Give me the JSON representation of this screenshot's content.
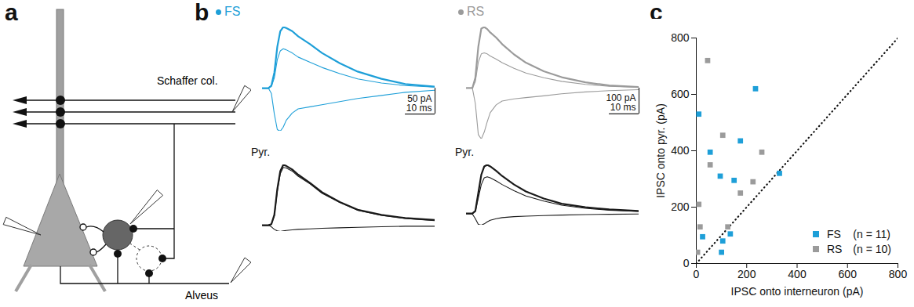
{
  "chart_data": [
    {
      "type": "diagram",
      "panel_label": "a",
      "labels": {
        "schaffer": "Schaffer col.",
        "alveus": "Alveus"
      }
    },
    {
      "type": "line",
      "panel_label": "b",
      "x": [
        -2,
        0,
        1,
        2,
        3,
        4,
        5,
        6,
        8,
        10,
        14,
        18,
        24,
        30,
        38,
        46,
        56
      ],
      "groups": [
        {
          "name": "FS",
          "color": "#1e9fd8",
          "marker": "circle",
          "scale_bars": {
            "y": {
              "value": 50,
              "label": "50 pA"
            },
            "x": {
              "value": 10,
              "label": "10 ms"
            }
          },
          "series": [
            {
              "color": "#1e9fd8",
              "values": [
                0,
                0,
                5,
                30,
                80,
                110,
                118,
                116,
                110,
                100,
                85,
                68,
                48,
                32,
                18,
                8,
                3
              ]
            },
            {
              "color": "#1e9fd8",
              "values": [
                0,
                0,
                3,
                20,
                55,
                72,
                76,
                74,
                68,
                60,
                50,
                40,
                28,
                18,
                10,
                5,
                2
              ]
            },
            {
              "color": "#1e9fd8",
              "values": [
                0,
                0,
                -10,
                -50,
                -80,
                -83,
                -75,
                -62,
                -48,
                -40,
                -36,
                -32,
                -26,
                -20,
                -14,
                -8,
                -4
              ]
            }
          ],
          "pyr_label": "Pyr.",
          "pyr_series": [
            {
              "color": "#1a1a1a",
              "values": [
                0,
                0,
                2,
                20,
                70,
                105,
                117,
                115,
                108,
                98,
                82,
                64,
                45,
                30,
                20,
                14,
                10
              ]
            },
            {
              "color": "#1a1a1a",
              "values": [
                0,
                0,
                2,
                18,
                66,
                100,
                112,
                111,
                105,
                95,
                80,
                62,
                44,
                29,
                19,
                13,
                9
              ]
            },
            {
              "color": "#1a1a1a",
              "values": [
                0,
                0,
                -3,
                -8,
                -11,
                -12,
                -11,
                -10,
                -9,
                -8,
                -7,
                -6,
                -5,
                -4,
                -3,
                -2,
                -2
              ]
            }
          ]
        },
        {
          "name": "RS",
          "color": "#9b9b9b",
          "marker": "circle",
          "scale_bars": {
            "y": {
              "value": 100,
              "label": "100 pA"
            },
            "x": {
              "value": 10,
              "label": "10 ms"
            }
          },
          "series": [
            {
              "color": "#9b9b9b",
              "values": [
                0,
                0,
                40,
                160,
                230,
                236,
                228,
                215,
                195,
                170,
                130,
                98,
                65,
                42,
                22,
                10,
                4
              ]
            },
            {
              "color": "#9b9b9b",
              "values": [
                0,
                0,
                25,
                100,
                132,
                136,
                132,
                124,
                112,
                98,
                76,
                58,
                40,
                26,
                14,
                7,
                3
              ]
            },
            {
              "color": "#9b9b9b",
              "values": [
                0,
                0,
                -60,
                -180,
                -197,
                -170,
                -130,
                -95,
                -65,
                -50,
                -42,
                -37,
                -30,
                -22,
                -15,
                -10,
                -6
              ]
            }
          ],
          "pyr_label": "Pyr.",
          "pyr_series": [
            {
              "color": "#1a1a1a",
              "values": [
                0,
                0,
                10,
                80,
                150,
                182,
                188,
                182,
                165,
                145,
                112,
                85,
                58,
                38,
                24,
                16,
                10
              ]
            },
            {
              "color": "#1a1a1a",
              "values": [
                0,
                0,
                8,
                60,
                112,
                138,
                142,
                138,
                126,
                112,
                88,
                68,
                48,
                32,
                20,
                13,
                8
              ]
            },
            {
              "color": "#1a1a1a",
              "values": [
                0,
                -2,
                -20,
                -42,
                -45,
                -40,
                -32,
                -26,
                -20,
                -16,
                -12,
                -10,
                -8,
                -6,
                -4,
                -3,
                -2
              ]
            }
          ]
        }
      ]
    },
    {
      "type": "scatter",
      "panel_label": "c",
      "x_label": "IPSC onto interneuron (pA)",
      "y_label": "IPSC onto pyr. (pA)",
      "xlim": [
        0,
        800
      ],
      "ylim": [
        0,
        800
      ],
      "xticks": [
        0,
        200,
        400,
        600,
        800
      ],
      "yticks": [
        0,
        200,
        400,
        600,
        800
      ],
      "legend": "bottom-right",
      "series": [
        {
          "name": "FS",
          "n_label": "(n = 11)",
          "color": "#1e9fd8",
          "marker": "square",
          "x": [
            10,
            25,
            55,
            95,
            100,
            105,
            135,
            150,
            175,
            235,
            330
          ],
          "y": [
            530,
            95,
            395,
            310,
            40,
            80,
            105,
            295,
            435,
            620,
            320
          ]
        },
        {
          "name": "RS",
          "n_label": "(n = 10)",
          "color": "#9b9b9b",
          "marker": "square",
          "x": [
            5,
            10,
            15,
            45,
            55,
            105,
            125,
            175,
            225,
            260
          ],
          "y": [
            40,
            210,
            130,
            720,
            350,
            455,
            130,
            250,
            290,
            395
          ]
        }
      ],
      "lines": [
        {
          "x": [
            0,
            800
          ],
          "y": [
            0,
            800
          ],
          "line_style": "dotted"
        }
      ]
    }
  ]
}
